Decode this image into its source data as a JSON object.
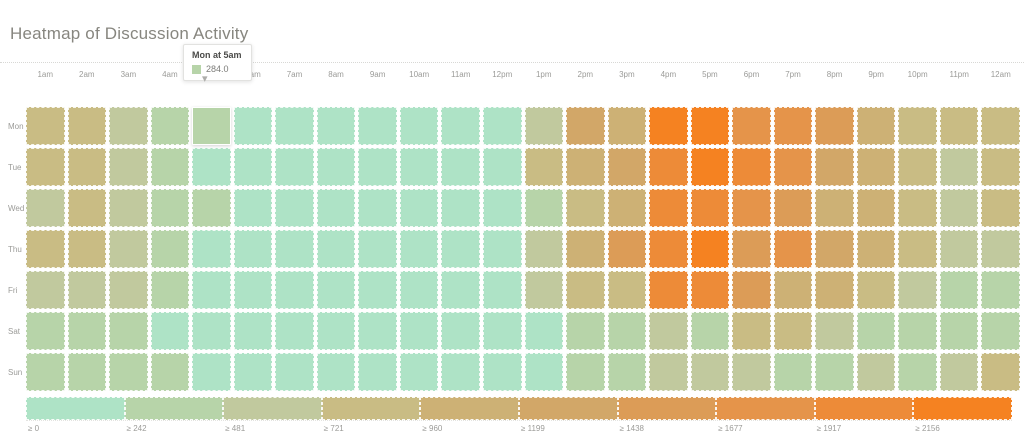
{
  "title": "Heatmap of Discussion Activity",
  "tooltip": {
    "title": "Mon at 5am",
    "value": "284.0",
    "swatch_color": "#b7d4a9",
    "target": {
      "row": 0,
      "col": 4
    },
    "caret": "▾"
  },
  "legend": {
    "labels": [
      "≥ 0",
      "≥ 242",
      "≥ 481",
      "≥ 721",
      "≥ 960",
      "≥ 1199",
      "≥ 1438",
      "≥ 1677",
      "≥ 1917",
      "≥ 2156"
    ]
  },
  "chart_data": {
    "type": "heatmap",
    "title": "Heatmap of Discussion Activity",
    "x": [
      "1am",
      "2am",
      "3am",
      "4am",
      "5am",
      "6am",
      "7am",
      "8am",
      "9am",
      "10am",
      "11am",
      "12pm",
      "1pm",
      "2pm",
      "3pm",
      "4pm",
      "5pm",
      "6pm",
      "7pm",
      "8pm",
      "9pm",
      "10pm",
      "11pm",
      "12am"
    ],
    "y": [
      "Mon",
      "Tue",
      "Wed",
      "Thu",
      "Fri",
      "Sat",
      "Sun"
    ],
    "thresholds": [
      0,
      242,
      481,
      721,
      960,
      1199,
      1438,
      1677,
      1917,
      2156
    ],
    "palette": [
      "#aee3c6",
      "#b7d4a9",
      "#c1c99e",
      "#c9bc84",
      "#cdb175",
      "#d2a768",
      "#dc9c57",
      "#e5944a",
      "#ed8b38",
      "#f58221"
    ],
    "values": [
      [
        840,
        840,
        600,
        360,
        284,
        120,
        120,
        120,
        120,
        120,
        120,
        120,
        600,
        1320,
        1080,
        2280,
        2280,
        1800,
        1800,
        1560,
        1080,
        840,
        840,
        840
      ],
      [
        840,
        840,
        600,
        360,
        120,
        120,
        120,
        120,
        120,
        120,
        120,
        120,
        840,
        1080,
        1320,
        2040,
        2280,
        2040,
        1800,
        1320,
        1080,
        840,
        600,
        840
      ],
      [
        600,
        840,
        600,
        360,
        360,
        120,
        120,
        120,
        120,
        120,
        120,
        120,
        360,
        840,
        1080,
        2040,
        2040,
        1800,
        1560,
        1080,
        1080,
        840,
        600,
        840
      ],
      [
        840,
        840,
        600,
        360,
        120,
        120,
        120,
        120,
        120,
        120,
        120,
        120,
        600,
        1080,
        1560,
        2040,
        2280,
        1560,
        1800,
        1320,
        1080,
        840,
        600,
        600
      ],
      [
        600,
        600,
        600,
        360,
        120,
        120,
        120,
        120,
        120,
        120,
        120,
        120,
        600,
        840,
        840,
        2040,
        2040,
        1560,
        1080,
        1080,
        840,
        600,
        360,
        360
      ],
      [
        360,
        360,
        360,
        120,
        120,
        120,
        120,
        120,
        120,
        120,
        120,
        120,
        120,
        360,
        360,
        600,
        360,
        840,
        840,
        600,
        360,
        360,
        360,
        360
      ],
      [
        360,
        360,
        360,
        360,
        120,
        120,
        120,
        120,
        120,
        120,
        120,
        120,
        120,
        360,
        360,
        600,
        600,
        600,
        360,
        360,
        600,
        360,
        600,
        840
      ]
    ],
    "known_point": {
      "y": "Mon",
      "x": "5am",
      "value": 284.0
    },
    "legend_position": "bottom",
    "grid": false
  }
}
